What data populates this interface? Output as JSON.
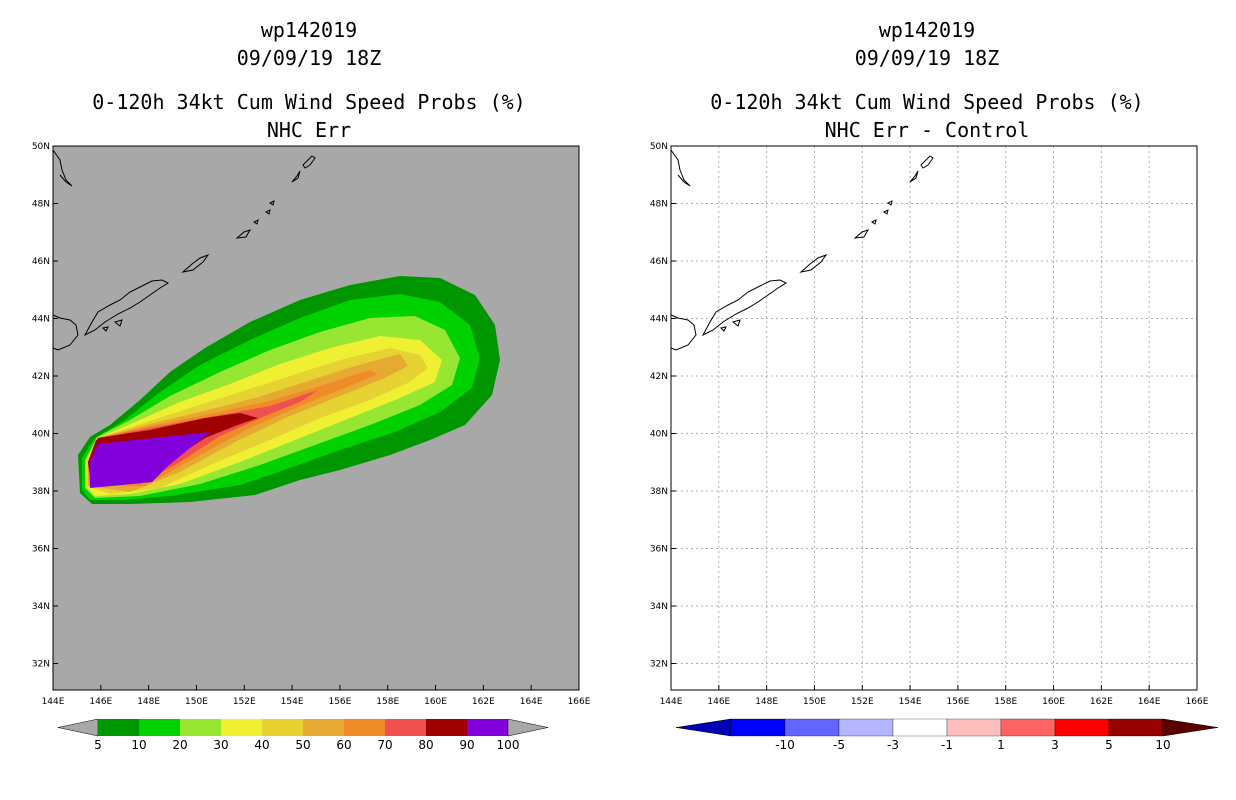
{
  "left_panel": {
    "title_line1": "wp142019",
    "title_line2": "09/09/19 18Z",
    "title_line3": "0-120h 34kt Cum Wind Speed Probs (%)",
    "title_line4": "NHC Err",
    "colorbar_labels": [
      "5",
      "10",
      "20",
      "30",
      "40",
      "50",
      "60",
      "70",
      "80",
      "90",
      "100"
    ],
    "colorbar_colors": [
      "#009600",
      "#00d200",
      "#96e632",
      "#f0f032",
      "#e6d232",
      "#e6aa32",
      "#f08c28",
      "#f05050",
      "#a00000",
      "#8200dc"
    ]
  },
  "right_panel": {
    "title_line1": "wp142019",
    "title_line2": "09/09/19 18Z",
    "title_line3": "0-120h 34kt Cum Wind Speed Probs (%)",
    "title_line4": "NHC Err - Control",
    "colorbar_labels": [
      "-10",
      "-5",
      "-3",
      "-1",
      "1",
      "3",
      "5",
      "10"
    ],
    "colorbar_colors": [
      "#0000b4",
      "#0000ff",
      "#6464ff",
      "#b4b4ff",
      "#ffffff",
      "#ffbebe",
      "#ff6464",
      "#ff0000",
      "#960000",
      "#5a0000"
    ]
  },
  "axes": {
    "lat_labels": [
      "50N",
      "48N",
      "46N",
      "44N",
      "42N",
      "40N",
      "38N",
      "36N",
      "34N",
      "32N"
    ],
    "lon_labels": [
      "144E",
      "146E",
      "148E",
      "150E",
      "152E",
      "154E",
      "156E",
      "158E",
      "160E",
      "162E",
      "164E",
      "166E"
    ]
  },
  "colors": {
    "plot_background_left": "#a8a8a8",
    "plot_background_right": "#ffffff"
  }
}
